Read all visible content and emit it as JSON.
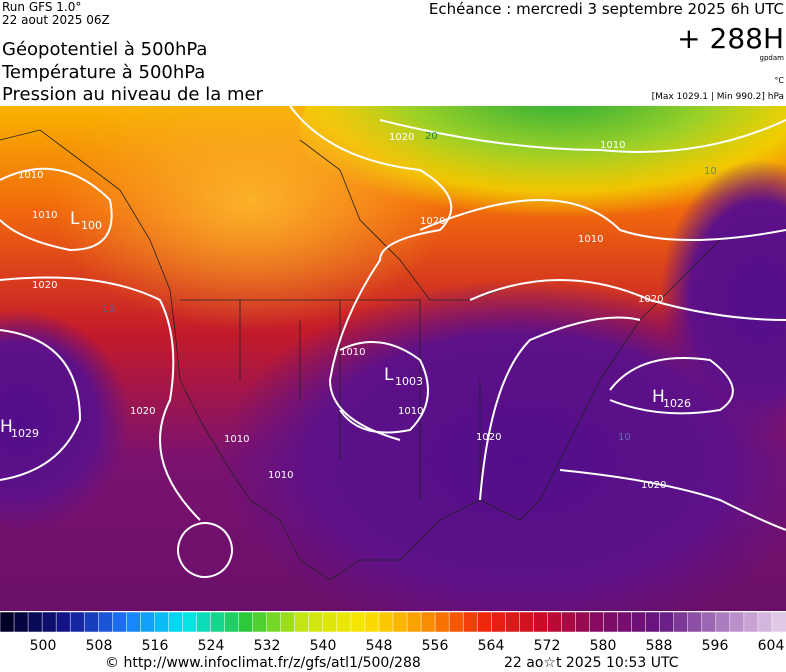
{
  "header": {
    "run": "Run GFS 1.0°",
    "date": "22 aout 2025 06Z",
    "titles": [
      "Géopotentiel à 500hPa",
      "Température à 500hPa",
      "Pression au niveau de la mer"
    ],
    "echeance": "Echéance : mercredi 3 septembre 2025 6h UTC",
    "lead": "+ 288H",
    "unit_geo": "gpdam",
    "unit_temp": "°C",
    "range": "[Max 1029.1 | Min 990.2] hPa"
  },
  "map": {
    "contour_labels": [
      "1020",
      "20",
      "1020",
      "1010",
      "1010",
      "1020",
      "10",
      "1010",
      "1010",
      "1010",
      "1010",
      "1020",
      "1020",
      "1020",
      "1010",
      "1020",
      "10",
      "1010",
      "10"
    ],
    "centers": [
      {
        "letter": "L",
        "value": "1003"
      },
      {
        "letter": "H",
        "value": "1026"
      },
      {
        "letter": "H",
        "value": "1029"
      },
      {
        "letter": "L",
        "value": "100"
      }
    ]
  },
  "colorbar": {
    "labels": [
      500,
      508,
      516,
      524,
      532,
      540,
      548,
      556,
      564,
      572,
      580,
      588,
      596,
      604
    ]
  },
  "footer": {
    "url": "© http://www.infoclimat.fr/z/gfs/atl1/500/288",
    "time": "22 ao☆t 2025 10:53 UTC"
  }
}
